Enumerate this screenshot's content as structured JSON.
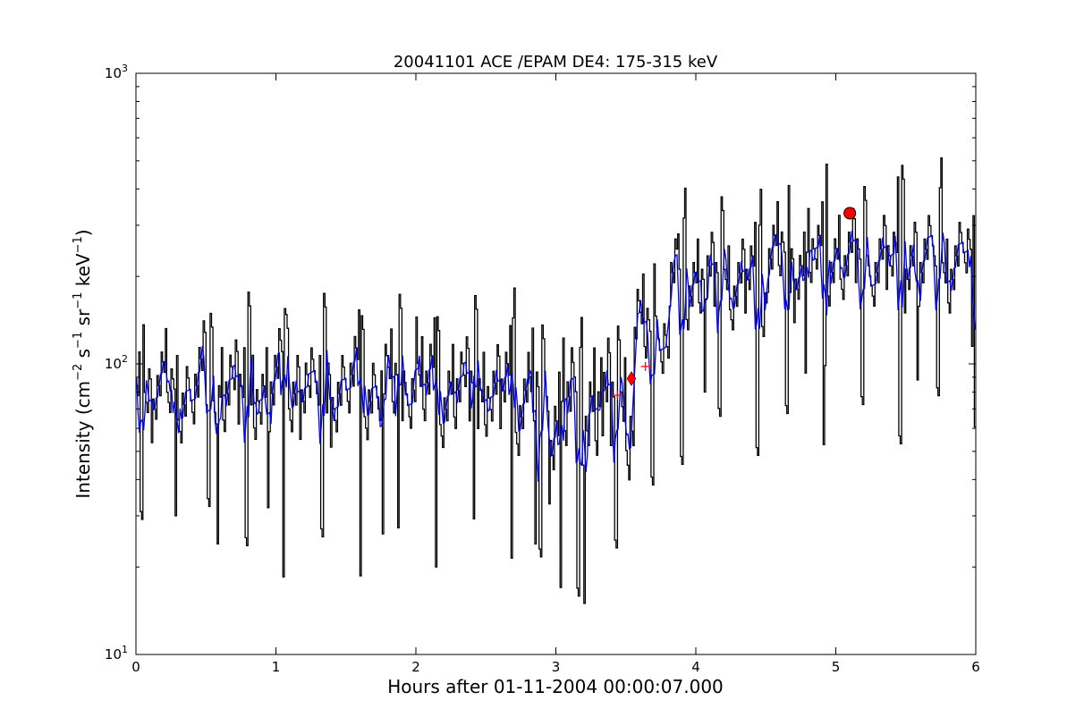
{
  "chart_data": {
    "type": "line",
    "title": "20041101 ACE /EPAM DE4: 175-315 keV",
    "xlabel": "Hours after 01-11-2004 00:00:07.000",
    "ylabel": {
      "prefix": "Intensity (cm",
      "exp1": "−2",
      "mid1": " s",
      "exp2": "−1",
      "mid2": " sr",
      "exp3": "−1",
      "mid3": " keV",
      "exp4": "−1",
      "suffix": ")"
    },
    "xlim": [
      0,
      6
    ],
    "ylim": [
      10,
      1000
    ],
    "yscale": "log",
    "grid": false,
    "x_ticks": [
      {
        "value": 0,
        "label": "0"
      },
      {
        "value": 1,
        "label": "1"
      },
      {
        "value": 2,
        "label": "2"
      },
      {
        "value": 3,
        "label": "3"
      },
      {
        "value": 4,
        "label": "4"
      },
      {
        "value": 5,
        "label": "5"
      },
      {
        "value": 6,
        "label": "6"
      }
    ],
    "y_ticks": [
      {
        "value": 10,
        "base": "10",
        "exp": "1"
      },
      {
        "value": 100,
        "base": "10",
        "exp": "2"
      },
      {
        "value": 1000,
        "base": "10",
        "exp": "3"
      }
    ],
    "series": [
      {
        "style": "steps",
        "color": "#000000",
        "segments": [
          {
            "x0": 0.0,
            "x1": 0.3,
            "level": 85,
            "spread": 0.22,
            "seed": 11
          },
          {
            "x0": 0.3,
            "x1": 2.8,
            "level": 82,
            "spread": 0.25,
            "seed": 23
          },
          {
            "x0": 2.8,
            "x1": 3.55,
            "level": 70,
            "spread": 0.32,
            "seed": 37
          },
          {
            "x0": 3.55,
            "x1": 3.8,
            "level": 130,
            "spread": 0.25,
            "seed": 41
          },
          {
            "x0": 3.8,
            "x1": 4.5,
            "level": 195,
            "spread": 0.22,
            "seed": 53
          },
          {
            "x0": 4.5,
            "x1": 6.0,
            "level": 230,
            "spread": 0.22,
            "seed": 67
          }
        ],
        "spikes": [
          {
            "x": 0.28,
            "y": 30
          },
          {
            "x": 0.58,
            "y": 24
          },
          {
            "x": 0.94,
            "y": 32
          },
          {
            "x": 1.06,
            "y": 155
          },
          {
            "x": 1.76,
            "y": 26
          },
          {
            "x": 2.0,
            "y": 145
          },
          {
            "x": 2.85,
            "y": 24
          },
          {
            "x": 3.03,
            "y": 17
          },
          {
            "x": 3.2,
            "y": 15
          },
          {
            "x": 3.32,
            "y": 105
          },
          {
            "x": 3.87,
            "y": 280
          },
          {
            "x": 4.06,
            "y": 80
          },
          {
            "x": 4.45,
            "y": 300
          },
          {
            "x": 4.78,
            "y": 93
          },
          {
            "x": 5.44,
            "y": 440
          },
          {
            "x": 5.58,
            "y": 88
          },
          {
            "x": 5.97,
            "y": 115
          }
        ]
      },
      {
        "style": "line",
        "color": "#0000ff",
        "smooth_of": 0
      }
    ],
    "markers": [
      {
        "shape": "circle",
        "x": 5.1,
        "y": 330,
        "color": "#ff0000"
      },
      {
        "shape": "diamond",
        "x": 3.54,
        "y": 89,
        "color": "#ff0000"
      },
      {
        "shape": "plus",
        "x": 3.44,
        "y": 78,
        "color": "#ff0000"
      },
      {
        "shape": "plus",
        "x": 3.64,
        "y": 98,
        "color": "#ff0000"
      }
    ]
  }
}
